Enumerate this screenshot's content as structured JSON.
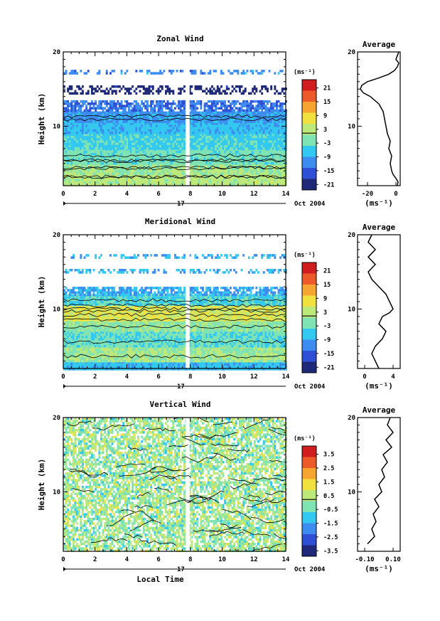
{
  "chart_data": [
    {
      "type": "heatmap",
      "title": "Zonal Wind",
      "ylabel": "Height (km)",
      "ylim": [
        2,
        20
      ],
      "yticks": [
        "10",
        "20"
      ],
      "xlim": [
        0,
        14
      ],
      "xticks": [
        "0",
        "2",
        "4",
        "6",
        "8",
        "10",
        "12",
        "14"
      ],
      "day_label": "17",
      "date_label": "Oct 2004",
      "colorbar": {
        "unit": "(ms⁻¹)",
        "ticks": [
          "21",
          "15",
          "9",
          "3",
          "-3",
          "-9",
          "-15",
          "-21"
        ],
        "range": [
          -24,
          24
        ]
      },
      "data_gap": [
        7.7,
        7.95
      ],
      "bands": [
        {
          "height": [
            2,
            3.5
          ],
          "value": 2
        },
        {
          "height": [
            3.5,
            5
          ],
          "value": 0
        },
        {
          "height": [
            5,
            7
          ],
          "value": -3
        },
        {
          "height": [
            7,
            9
          ],
          "value": -6
        },
        {
          "height": [
            9,
            10.5
          ],
          "value": -8
        },
        {
          "height": [
            10.5,
            12
          ],
          "value": -11
        },
        {
          "height": [
            12,
            13.5
          ],
          "value": -14
        },
        {
          "height": [
            14.5,
            15.5
          ],
          "value": -22
        },
        {
          "height": [
            17.2,
            17.6
          ],
          "value": -12
        }
      ],
      "average_profile": {
        "title": "Average",
        "xlim": [
          -27,
          3
        ],
        "xticks": [
          "-20",
          "0"
        ],
        "xlabel": "(ms⁻¹)",
        "points": [
          [
            1,
            2
          ],
          [
            1.5,
            2.5
          ],
          [
            0,
            3
          ],
          [
            -2,
            3.5
          ],
          [
            -3,
            4
          ],
          [
            -4,
            5
          ],
          [
            -3,
            6
          ],
          [
            -5,
            7
          ],
          [
            -4,
            8
          ],
          [
            -6,
            9
          ],
          [
            -7,
            10
          ],
          [
            -8,
            11
          ],
          [
            -9,
            12
          ],
          [
            -12,
            13
          ],
          [
            -18,
            14
          ],
          [
            -23,
            14.5
          ],
          [
            -25,
            15
          ],
          [
            -24,
            15.5
          ],
          [
            -20,
            16
          ],
          [
            -12,
            16.5
          ],
          [
            -5,
            17
          ],
          [
            -1,
            17.5
          ],
          [
            1,
            18
          ],
          [
            2,
            18.5
          ],
          [
            0,
            19
          ],
          [
            1,
            19.5
          ],
          [
            2,
            20
          ]
        ]
      }
    },
    {
      "type": "heatmap",
      "title": "Meridional Wind",
      "ylabel": "Height (km)",
      "ylim": [
        2,
        20
      ],
      "yticks": [
        "10",
        "20"
      ],
      "xlim": [
        0,
        14
      ],
      "xticks": [
        "0",
        "2",
        "4",
        "6",
        "8",
        "10",
        "12",
        "14"
      ],
      "day_label": "17",
      "date_label": "Oct 2004",
      "colorbar": {
        "unit": "(ms⁻¹)",
        "ticks": [
          "21",
          "15",
          "9",
          "3",
          "-3",
          "-9",
          "-15",
          "-21"
        ],
        "range": [
          -24,
          24
        ]
      },
      "data_gap": [
        7.7,
        7.95
      ],
      "bands": [
        {
          "height": [
            2,
            3
          ],
          "value": -8
        },
        {
          "height": [
            3,
            5
          ],
          "value": 0
        },
        {
          "height": [
            5,
            7
          ],
          "value": -4
        },
        {
          "height": [
            7,
            8.5
          ],
          "value": -1
        },
        {
          "height": [
            8.5,
            10.5
          ],
          "value": 5
        },
        {
          "height": [
            10.5,
            12
          ],
          "value": -5
        },
        {
          "height": [
            12,
            13
          ],
          "value": -10
        },
        {
          "height": [
            15,
            15.4
          ],
          "value": -9
        },
        {
          "height": [
            17,
            17.4
          ],
          "value": -9
        }
      ],
      "average_profile": {
        "title": "Average",
        "xlim": [
          -1,
          5
        ],
        "xticks": [
          "0",
          "4"
        ],
        "xlabel": "(ms⁻¹)",
        "points": [
          [
            2,
            2
          ],
          [
            1.5,
            3
          ],
          [
            1,
            4
          ],
          [
            1.5,
            5
          ],
          [
            2.5,
            6
          ],
          [
            3,
            7
          ],
          [
            2,
            8
          ],
          [
            2.5,
            9
          ],
          [
            3.5,
            9.5
          ],
          [
            4,
            10
          ],
          [
            3.5,
            11
          ],
          [
            3,
            12
          ],
          [
            2,
            13
          ],
          [
            1,
            14
          ],
          [
            0.5,
            15
          ],
          [
            1.5,
            16
          ],
          [
            0.5,
            17
          ],
          [
            1.5,
            18
          ],
          [
            0.5,
            19
          ],
          [
            1,
            20
          ]
        ]
      }
    },
    {
      "type": "heatmap",
      "title": "Vertical Wind",
      "ylabel": "Height (km)",
      "xlabel": "Local Time",
      "ylim": [
        2,
        20
      ],
      "yticks": [
        "10",
        "20"
      ],
      "xlim": [
        0,
        14
      ],
      "xticks": [
        "0",
        "2",
        "4",
        "6",
        "8",
        "10",
        "12",
        "14"
      ],
      "day_label": "17",
      "date_label": "Oct 2004",
      "colorbar": {
        "unit": "(ms⁻¹)",
        "ticks": [
          "3.5",
          "2.5",
          "1.5",
          "0.5",
          "-0.5",
          "-1.5",
          "-2.5",
          "-3.5"
        ],
        "range": [
          -4,
          4
        ]
      },
      "data_gap": [
        7.7,
        7.95
      ],
      "bands": [
        {
          "height": [
            2,
            20
          ],
          "value": 0
        }
      ],
      "average_profile": {
        "title": "Average",
        "xlim": [
          -0.15,
          0.15
        ],
        "xticks": [
          "-0.10",
          "0.10"
        ],
        "xlabel": "(ms⁻¹)",
        "points": [
          [
            -0.08,
            3
          ],
          [
            -0.03,
            4
          ],
          [
            -0.05,
            5
          ],
          [
            -0.02,
            6
          ],
          [
            -0.04,
            7
          ],
          [
            0.0,
            8
          ],
          [
            -0.03,
            9
          ],
          [
            0.02,
            10
          ],
          [
            0.0,
            11
          ],
          [
            0.04,
            12
          ],
          [
            0.02,
            13
          ],
          [
            0.06,
            14
          ],
          [
            0.03,
            15
          ],
          [
            0.09,
            16
          ],
          [
            0.05,
            17
          ],
          [
            0.1,
            18
          ],
          [
            0.06,
            19
          ],
          [
            0.08,
            20
          ]
        ]
      }
    }
  ],
  "colors": {
    "palette": [
      "#1e2a78",
      "#2f4fd4",
      "#3d8cf0",
      "#33c8f0",
      "#7fe3b4",
      "#bde87a",
      "#f0e040",
      "#f5a530",
      "#ec5a2a",
      "#d01e1e"
    ],
    "gap": "#ffffff",
    "axis": "#000000",
    "profile_line": "#000000"
  }
}
